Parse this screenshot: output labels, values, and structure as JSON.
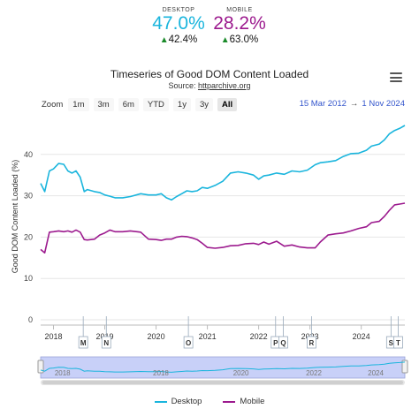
{
  "kpis": {
    "desktop": {
      "label": "DESKTOP",
      "value": "47.0%",
      "change": "42.4%",
      "color": "#1ab5dd"
    },
    "mobile": {
      "label": "MOBILE",
      "value": "28.2%",
      "change": "63.0%",
      "color": "#9c1a8e"
    }
  },
  "header": {
    "title": "Timeseries of Good DOM Content Loaded",
    "source_prefix": "Source: ",
    "source_link": "httparchive.org"
  },
  "zoom": {
    "label": "Zoom",
    "buttons": [
      "1m",
      "3m",
      "6m",
      "YTD",
      "1y",
      "3y",
      "All"
    ],
    "active": "All"
  },
  "range": {
    "from": "15 Mar 2012",
    "arrow": "→",
    "to": "1 Nov 2024"
  },
  "legend": [
    {
      "name": "Desktop",
      "color": "#1ab5dd"
    },
    {
      "name": "Mobile",
      "color": "#9c1a8e"
    }
  ],
  "chart_data": {
    "type": "line",
    "ylabel": "Good DOM Content Loaded (%)",
    "ylim": [
      0,
      50
    ],
    "yticks": [
      0,
      10,
      20,
      30,
      40
    ],
    "xlim": [
      2017.75,
      2024.85
    ],
    "xticks": [
      "2018",
      "2019",
      "2020",
      "2021",
      "2022",
      "2023",
      "2024"
    ],
    "grid": "horizontal",
    "series": [
      {
        "name": "Desktop",
        "color": "#1ab5dd",
        "x": [
          2017.75,
          2017.83,
          2017.92,
          2018.0,
          2018.1,
          2018.2,
          2018.28,
          2018.36,
          2018.44,
          2018.52,
          2018.6,
          2018.66,
          2018.8,
          2018.9,
          2019.0,
          2019.1,
          2019.2,
          2019.35,
          2019.5,
          2019.7,
          2019.85,
          2020.0,
          2020.1,
          2020.2,
          2020.3,
          2020.4,
          2020.5,
          2020.6,
          2020.7,
          2020.8,
          2020.9,
          2021.0,
          2021.15,
          2021.3,
          2021.45,
          2021.6,
          2021.75,
          2021.9,
          2022.0,
          2022.1,
          2022.2,
          2022.35,
          2022.5,
          2022.65,
          2022.8,
          2022.95,
          2023.1,
          2023.2,
          2023.35,
          2023.5,
          2023.65,
          2023.8,
          2023.95,
          2024.1,
          2024.2,
          2024.35,
          2024.45,
          2024.55,
          2024.65,
          2024.75,
          2024.85
        ],
        "y": [
          33,
          31,
          36,
          36.5,
          37.8,
          37.6,
          36,
          35.5,
          36,
          34.5,
          31,
          31.5,
          31,
          30.8,
          30.2,
          29.9,
          29.5,
          29.5,
          29.8,
          30.5,
          30.2,
          30.2,
          30.5,
          29.5,
          29,
          29.8,
          30.5,
          31.2,
          31,
          31.2,
          32,
          31.8,
          32.5,
          33.5,
          35.5,
          35.8,
          35.5,
          35,
          34,
          34.8,
          35,
          35.5,
          35.2,
          36,
          35.8,
          36.2,
          37.5,
          38,
          38.2,
          38.5,
          39.5,
          40.2,
          40.3,
          41,
          42,
          42.5,
          43.5,
          45,
          45.8,
          46.3,
          47
        ]
      },
      {
        "name": "Mobile",
        "color": "#9c1a8e",
        "x": [
          2017.75,
          2017.83,
          2017.92,
          2018.0,
          2018.1,
          2018.2,
          2018.28,
          2018.36,
          2018.44,
          2018.52,
          2018.6,
          2018.66,
          2018.8,
          2018.9,
          2019.0,
          2019.1,
          2019.2,
          2019.35,
          2019.5,
          2019.7,
          2019.85,
          2020.0,
          2020.1,
          2020.2,
          2020.3,
          2020.4,
          2020.5,
          2020.6,
          2020.7,
          2020.8,
          2020.9,
          2021.0,
          2021.15,
          2021.3,
          2021.45,
          2021.6,
          2021.75,
          2021.9,
          2022.0,
          2022.1,
          2022.2,
          2022.35,
          2022.5,
          2022.65,
          2022.8,
          2022.95,
          2023.1,
          2023.2,
          2023.35,
          2023.5,
          2023.65,
          2023.8,
          2023.95,
          2024.1,
          2024.2,
          2024.35,
          2024.45,
          2024.55,
          2024.65,
          2024.75,
          2024.85
        ],
        "y": [
          17,
          16.2,
          21.2,
          21.3,
          21.5,
          21.3,
          21.5,
          21.2,
          21.7,
          21.2,
          19.4,
          19.3,
          19.5,
          20.5,
          21,
          21.7,
          21.3,
          21.3,
          21.5,
          21.2,
          19.5,
          19.4,
          19.2,
          19.5,
          19.5,
          20,
          20.2,
          20.1,
          19.8,
          19.4,
          18.5,
          17.5,
          17.3,
          17.5,
          17.9,
          18,
          18.4,
          18.5,
          18.2,
          18.8,
          18.3,
          19,
          17.8,
          18.1,
          17.6,
          17.4,
          17.4,
          18.8,
          20.5,
          20.8,
          21,
          21.5,
          22.1,
          22.5,
          23.5,
          23.8,
          25,
          26.5,
          27.8,
          28,
          28.2
        ]
      }
    ],
    "annotations": [
      {
        "label": "M",
        "x": 2018.58
      },
      {
        "label": "N",
        "x": 2019.03
      },
      {
        "label": "O",
        "x": 2020.63
      },
      {
        "label": "P",
        "x": 2022.33
      },
      {
        "label": "Q",
        "x": 2022.48
      },
      {
        "label": "R",
        "x": 2023.03
      },
      {
        "label": "S",
        "x": 2024.58
      },
      {
        "label": "T",
        "x": 2024.72
      }
    ],
    "navigator": {
      "xticks": [
        "2018",
        "2018",
        "2020",
        "2022",
        "2024"
      ]
    }
  }
}
